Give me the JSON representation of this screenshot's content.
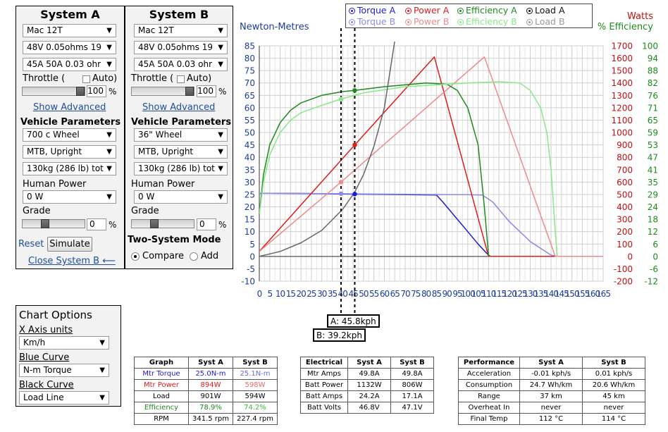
{
  "systemA": {
    "title": "System A",
    "motor": "Mac 12T",
    "battery": "48V 0.05ohms 19",
    "controller": "45A 50A 0.03 ohr",
    "throttle_label": "Throttle (",
    "auto_label": "Auto)",
    "throttle_value": "100",
    "throttle_fraction": 1.0,
    "show_advanced": "Show Advanced",
    "vehicle_params": "Vehicle Parameters",
    "wheel": "700 c  Wheel",
    "bike": "MTB, Upright",
    "weight": "130kg (286 lb) tot",
    "human_power_label": "Human Power",
    "human_power": "0 W",
    "grade_label": "Grade",
    "grade_value": "0",
    "reset": "Reset",
    "simulate": "Simulate",
    "close": "Close System B ⟵"
  },
  "systemB": {
    "title": "System B",
    "motor": "Mac 12T",
    "battery": "48V 0.05ohms 19",
    "controller": "45A 50A 0.03 ohr",
    "throttle_label": "Throttle (",
    "auto_label": "Auto)",
    "throttle_value": "100",
    "throttle_fraction": 1.0,
    "show_advanced": "Show Advanced",
    "vehicle_params": "Vehicle Parameters",
    "wheel": "36\"  Wheel",
    "bike": "MTB, Upright",
    "weight": "130kg (286 lb) tot",
    "human_power_label": "Human Power",
    "human_power": "0 W",
    "grade_label": "Grade",
    "grade_value": "0",
    "two_system_mode": "Two-System Mode",
    "compare": "Compare",
    "add": "Add",
    "mode_selected": "Compare"
  },
  "pct_symbol": "%",
  "chart_options": {
    "title": "Chart Options",
    "x_axis_label": "X Axis units",
    "x_axis_value": "Km/h",
    "blue_label": "Blue Curve",
    "blue_value": "N-m Torque",
    "black_label": "Black Curve",
    "black_value": "Load Line"
  },
  "legend": {
    "torque_a": "Torque A",
    "power_a": "Power A",
    "efficiency_a": "Efficiency A",
    "load_a": "Load A",
    "torque_b": "Torque B",
    "power_b": "Power B",
    "efficiency_b": "Efficiency B",
    "load_b": "Load B"
  },
  "markers": {
    "a_label": "A: 45.8kph",
    "b_label": "B: 39.2kph",
    "a_speed": 45.8,
    "b_speed": 39.2
  },
  "chart_data": {
    "type": "line",
    "left_axis_label": "Newton-Metres",
    "right_axis_label_1": "Watts",
    "right_axis_label_2": "% Efficiency",
    "x_ticks": [
      0,
      5,
      10,
      15,
      20,
      25,
      30,
      35,
      40,
      45,
      50,
      55,
      60,
      65,
      70,
      75,
      80,
      85,
      90,
      95,
      100,
      105,
      110,
      115,
      120,
      125,
      130,
      135,
      140,
      145,
      150,
      155,
      160,
      165
    ],
    "y_left_ticks": [
      -10,
      -5,
      0,
      5,
      10,
      15,
      20,
      25,
      30,
      35,
      40,
      45,
      50,
      55,
      60,
      65,
      70,
      75,
      80,
      85
    ],
    "y_watts_ticks": [
      -200,
      -100,
      0,
      100,
      200,
      300,
      400,
      500,
      600,
      700,
      800,
      900,
      1000,
      1100,
      1200,
      1300,
      1400,
      1500,
      1600,
      1700
    ],
    "y_eff_ticks": [
      -12,
      -6,
      0,
      6,
      12,
      18,
      24,
      29,
      35,
      41,
      47,
      53,
      59,
      65,
      71,
      76,
      82,
      88,
      94,
      100
    ],
    "xlim": [
      0,
      165
    ],
    "ylim": [
      -10,
      85
    ],
    "grid": true,
    "series": [
      {
        "name": "Torque A",
        "color": "#1c1cd4",
        "x": [
          0,
          20,
          40,
          60,
          85,
          88,
          95,
          100,
          105,
          110,
          111,
          165
        ],
        "y": [
          25.5,
          25.4,
          25.2,
          25.0,
          24.8,
          22,
          15,
          10,
          5,
          0.5,
          0,
          0
        ]
      },
      {
        "name": "Torque B",
        "color": "#8a8ae6",
        "x": [
          0,
          40,
          70,
          100,
          107,
          112,
          120,
          130,
          140,
          143,
          165
        ],
        "y": [
          25.5,
          25.3,
          25.1,
          24.9,
          24.8,
          22,
          14,
          6,
          0.5,
          0,
          0
        ]
      },
      {
        "name": "Power A",
        "color": "#dd1c1c",
        "x": [
          0,
          45.8,
          84,
          110,
          111,
          165
        ],
        "y": [
          2,
          45,
          80.5,
          0,
          0,
          0
        ]
      },
      {
        "name": "Power B",
        "color": "#ee8a8a",
        "x": [
          0,
          39.2,
          108,
          142,
          143,
          165
        ],
        "y": [
          2,
          30,
          80.5,
          0,
          0,
          0
        ]
      },
      {
        "name": "Efficiency A",
        "color": "#1e8a1e",
        "x": [
          0,
          2,
          5,
          10,
          15,
          20,
          30,
          40,
          45.8,
          60,
          80,
          90,
          95,
          100,
          105,
          108,
          110,
          111
        ],
        "y": [
          17,
          33,
          45,
          54,
          59,
          62,
          65,
          66.5,
          67,
          68.5,
          70,
          69.5,
          67,
          60,
          45,
          20,
          0.5,
          0
        ]
      },
      {
        "name": "Efficiency B",
        "color": "#88e888",
        "x": [
          0,
          2,
          5,
          10,
          15,
          20,
          30,
          39.2,
          50,
          70,
          100,
          115,
          125,
          130,
          135,
          138,
          140,
          142,
          143
        ],
        "y": [
          17,
          30,
          41,
          50,
          55,
          58,
          61,
          63.5,
          66,
          68.5,
          70,
          70.5,
          70,
          67,
          60,
          50,
          35,
          10,
          0
        ]
      },
      {
        "name": "Load",
        "color": "#666666",
        "x": [
          0,
          10,
          20,
          30,
          40,
          45.8,
          50,
          55,
          60,
          65
        ],
        "y": [
          0,
          2,
          5.5,
          10.5,
          19,
          26,
          33,
          44.5,
          60,
          87
        ]
      }
    ]
  },
  "graph_table": {
    "headers": [
      "Graph",
      "Syst A",
      "Syst B"
    ],
    "rows": [
      {
        "label": "Mtr Torque",
        "a": "25.0N-m",
        "b": "25.1N-m",
        "color": "#1c1cd4",
        "bcolor": "#6a6ae0"
      },
      {
        "label": "Mtr Power",
        "a": "894W",
        "b": "598W",
        "color": "#dd1c1c",
        "bcolor": "#e86a6a"
      },
      {
        "label": "Load",
        "a": "901W",
        "b": "594W",
        "color": "#000000",
        "bcolor": "#000000"
      },
      {
        "label": "Efficiency",
        "a": "78.9%",
        "b": "74.2%",
        "color": "#1e8a1e",
        "bcolor": "#38b838"
      },
      {
        "label": "RPM",
        "a": "341.5 rpm",
        "b": "227.4 rpm",
        "color": "#000000",
        "bcolor": "#000000"
      }
    ]
  },
  "electrical_table": {
    "headers": [
      "Electrical",
      "Syst A",
      "Syst B"
    ],
    "rows": [
      {
        "label": "Mtr Amps",
        "a": "49.8A",
        "b": "49.8A"
      },
      {
        "label": "Batt Power",
        "a": "1132W",
        "b": "806W"
      },
      {
        "label": "Batt Amps",
        "a": "24.2A",
        "b": "17.1A"
      },
      {
        "label": "Batt Volts",
        "a": "46.8V",
        "b": "47.1V"
      }
    ]
  },
  "performance_table": {
    "headers": [
      "Performance",
      "Syst A",
      "Syst B"
    ],
    "rows": [
      {
        "label": "Acceleration",
        "a": "-0.01 kph/s",
        "b": "0.01 kph/s"
      },
      {
        "label": "Consumption",
        "a": "24.7 Wh/km",
        "b": "20.6 Wh/km"
      },
      {
        "label": "Range",
        "a": "37 km",
        "b": "45 km"
      },
      {
        "label": "Overheat In",
        "a": "never",
        "b": "never"
      },
      {
        "label": "Final Temp",
        "a": "112 °C",
        "b": "114 °C"
      }
    ]
  }
}
